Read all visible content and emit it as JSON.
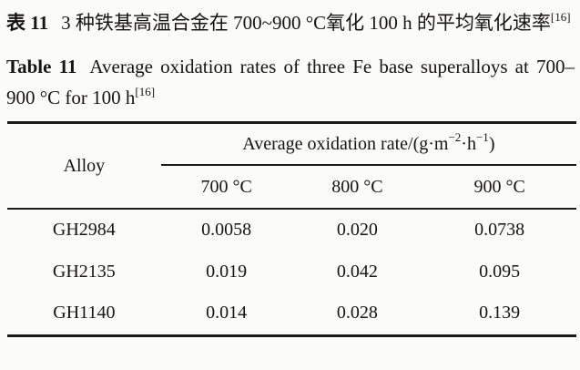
{
  "colors": {
    "ink": "#151413",
    "background": "#fbfbf9"
  },
  "document": {
    "captions": {
      "chinese": {
        "label": "表 11",
        "text": "3 种铁基高温合金在 700~900 °C氧化 100 h 的平均氧化速率",
        "ref": "[16]"
      },
      "english": {
        "label": "Table 11",
        "text": "Average oxidation rates of three Fe base superalloys at 700–900 °C for 100 h",
        "ref": "[16]"
      }
    },
    "table": {
      "header": {
        "alloy": "Alloy",
        "rate_group": {
          "prefix": "Average oxidation rate/(g·m",
          "sup1": "−2",
          "mid": "·h",
          "sup2": "−1",
          "suffix": ")"
        },
        "temps": [
          "700 °C",
          "800 °C",
          "900 °C"
        ]
      },
      "rows": [
        {
          "alloy": "GH2984",
          "values": [
            "0.0058",
            "0.020",
            "0.0738"
          ]
        },
        {
          "alloy": "GH2135",
          "values": [
            "0.019",
            "0.042",
            "0.095"
          ]
        },
        {
          "alloy": "GH1140",
          "values": [
            "0.014",
            "0.028",
            "0.139"
          ]
        }
      ]
    }
  }
}
